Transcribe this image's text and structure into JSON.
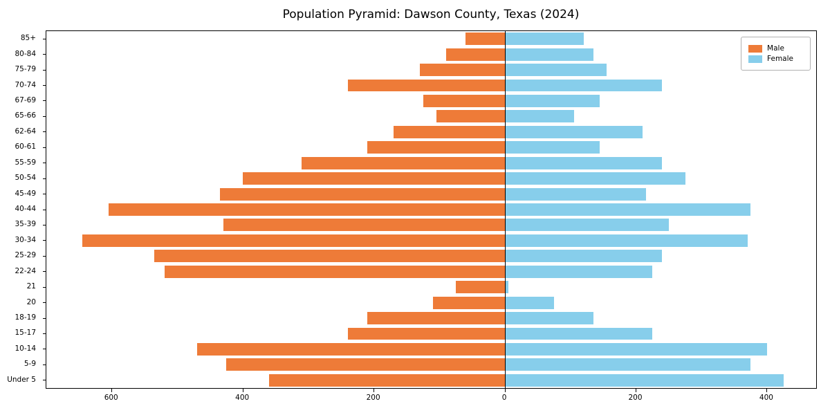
{
  "chart_data": {
    "type": "bar",
    "orientation": "horizontal",
    "subtype": "population-pyramid",
    "title": "Population Pyramid: Dawson County, Texas (2024)",
    "categories_top_to_bottom": [
      "85+",
      "80-84",
      "75-79",
      "70-74",
      "67-69",
      "65-66",
      "62-64",
      "60-61",
      "55-59",
      "50-54",
      "45-49",
      "40-44",
      "35-39",
      "30-34",
      "25-29",
      "22-24",
      "21",
      "20",
      "18-19",
      "15-17",
      "10-14",
      "5-9",
      "Under 5"
    ],
    "series": [
      {
        "name": "Male",
        "side": "left",
        "color": "#ee7b38",
        "values": [
          60,
          90,
          130,
          240,
          125,
          105,
          170,
          210,
          310,
          400,
          435,
          605,
          430,
          645,
          535,
          520,
          75,
          110,
          210,
          240,
          470,
          425,
          360
        ]
      },
      {
        "name": "Female",
        "side": "right",
        "color": "#87ceeb",
        "values": [
          120,
          135,
          155,
          240,
          145,
          105,
          210,
          145,
          240,
          275,
          215,
          375,
          250,
          370,
          240,
          225,
          5,
          75,
          135,
          225,
          400,
          375,
          425
        ]
      }
    ],
    "xlim": [
      -700,
      475
    ],
    "x_ticks": [
      -600,
      -400,
      -200,
      0,
      200,
      400
    ],
    "x_tick_labels": [
      "600",
      "400",
      "200",
      "0",
      "200",
      "400"
    ],
    "legend_position": "upper right",
    "grid": false,
    "axis_color": "#000000",
    "zero_line": true
  }
}
